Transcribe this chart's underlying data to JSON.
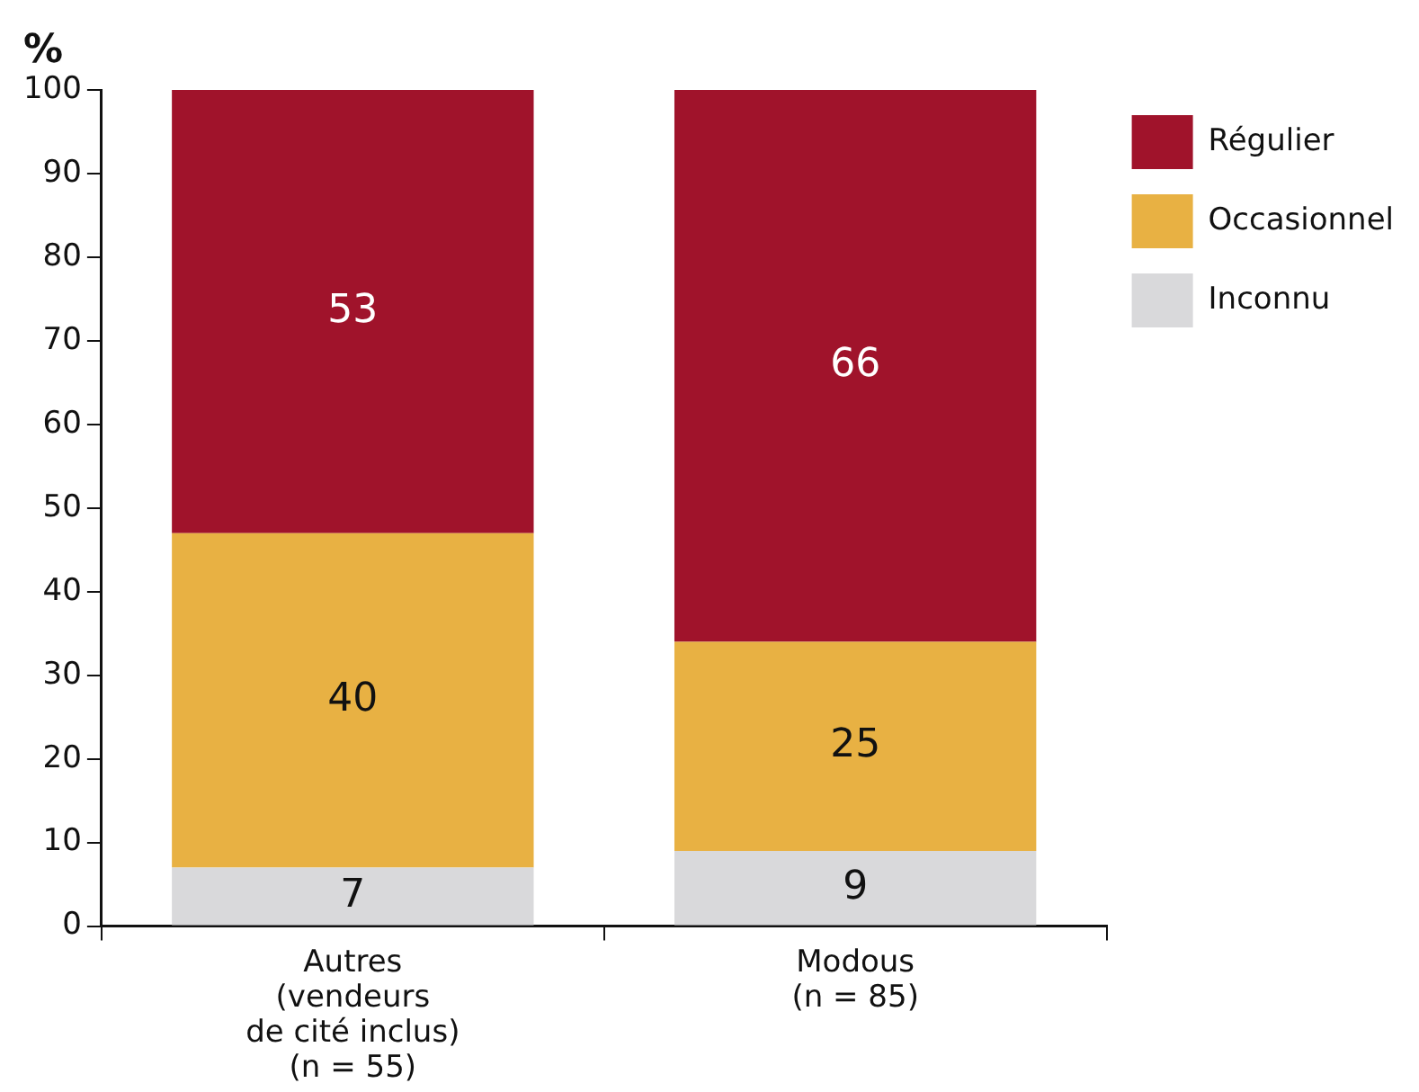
{
  "chart_data": {
    "type": "bar",
    "stacked": true,
    "ylabel": "%",
    "categories": [
      "Autres\n(vendeurs\nde cité inclus)\n(n = 55)",
      "Modous\n(n = 85)"
    ],
    "series": [
      {
        "name": "Inconnu",
        "color": "#d9d9db",
        "values": [
          7,
          9
        ]
      },
      {
        "name": "Occasionnel",
        "color": "#e8b143",
        "values": [
          40,
          25
        ]
      },
      {
        "name": "Régulier",
        "color": "#a0132b",
        "values": [
          53,
          66
        ]
      }
    ],
    "ylim": [
      0,
      100
    ],
    "yticks": [
      0,
      10,
      20,
      30,
      40,
      50,
      60,
      70,
      80,
      90,
      100
    ],
    "grid": false,
    "legend": "top right",
    "data_labels": true
  }
}
